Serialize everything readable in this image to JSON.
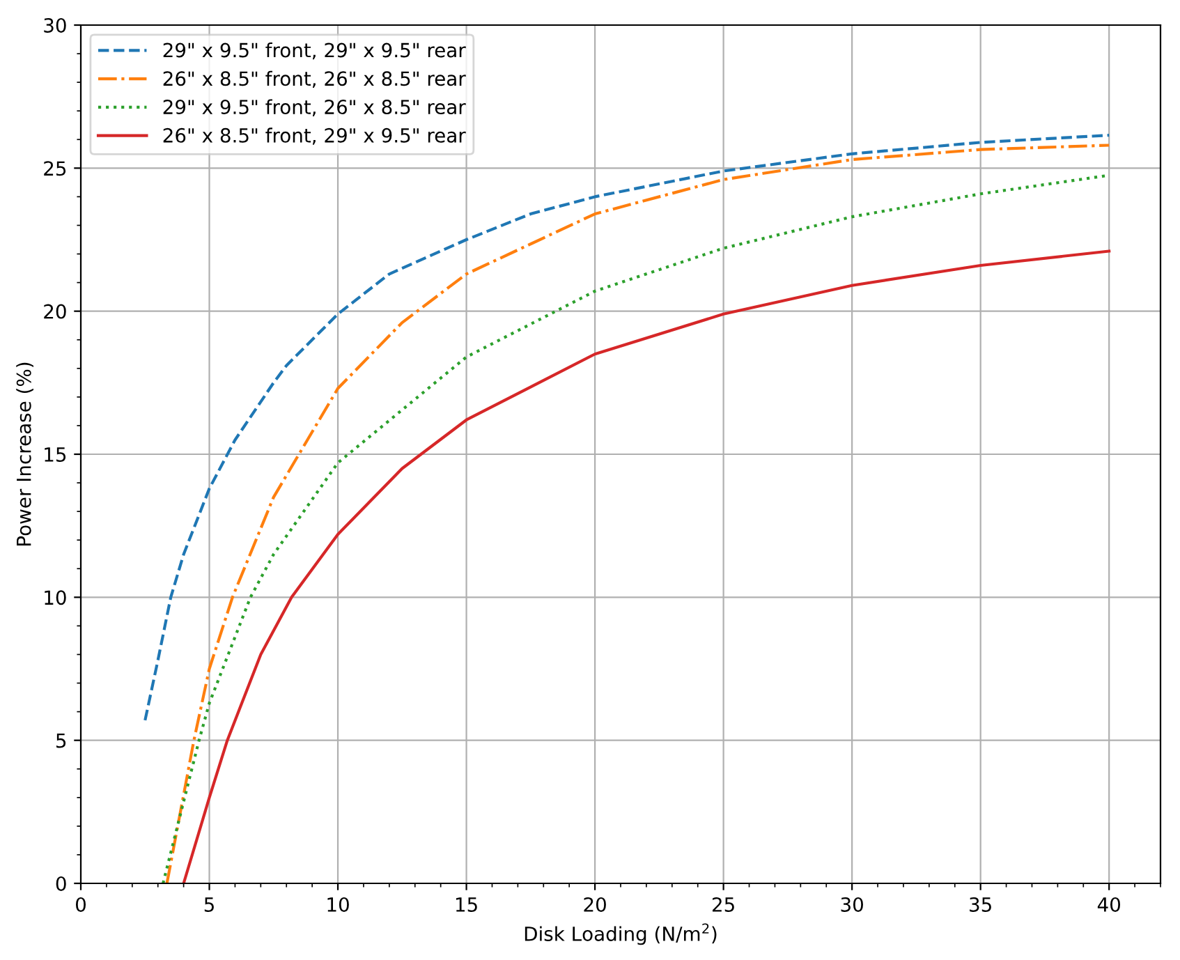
{
  "chart_data": {
    "type": "line",
    "xlabel": "Disk Loading (N/m$^{2}$)",
    "ylabel": "Power Increase (%)",
    "xlim": [
      0,
      42
    ],
    "xticks": [
      0,
      5,
      10,
      15,
      20,
      25,
      30,
      35,
      40
    ],
    "ylim": [
      0,
      30
    ],
    "yticks": [
      0,
      5,
      10,
      15,
      20,
      25,
      30
    ],
    "grid": true,
    "legend": "top left",
    "series": [
      {
        "name": "29\" x 9.5\" front, 29\" x 9.5\" rear",
        "color": "#1f77b4",
        "line_style": "dashed",
        "x": [
          2.5,
          3,
          3.5,
          4,
          5,
          6,
          7.5,
          8,
          10,
          12,
          15,
          17.5,
          20,
          25,
          30,
          35,
          40
        ],
        "values": [
          5.7,
          7.8,
          10,
          11.5,
          13.8,
          15.5,
          17.5,
          18.1,
          19.9,
          21.3,
          22.5,
          23.4,
          24.0,
          24.9,
          25.5,
          25.9,
          26.15
        ]
      },
      {
        "name": "26\" x 8.5\" front, 26\" x 8.5\" rear",
        "color": "#ff7f0e",
        "line_style": "dashdot",
        "x": [
          3.35,
          4.4,
          5,
          5.9,
          7.5,
          10,
          12.5,
          15,
          20,
          25,
          30,
          35,
          40
        ],
        "values": [
          0,
          5,
          7.5,
          10,
          13.5,
          17.3,
          19.6,
          21.3,
          23.4,
          24.6,
          25.3,
          25.65,
          25.8
        ]
      },
      {
        "name": "29\" x 9.5\" front, 26\" x 8.5\" rear",
        "color": "#2ca02c",
        "line_style": "dotted",
        "x": [
          3.2,
          4.6,
          5,
          6.6,
          7.5,
          10,
          15,
          20,
          25,
          30,
          35,
          40
        ],
        "values": [
          0,
          5,
          6.3,
          10,
          11.5,
          14.7,
          18.4,
          20.7,
          22.2,
          23.3,
          24.1,
          24.75
        ]
      },
      {
        "name": "26\" x 8.5\" front, 29\" x 9.5\" rear",
        "color": "#d62728",
        "line_style": "solid",
        "x": [
          4.0,
          5,
          5.7,
          7,
          8.2,
          10,
          12.5,
          15,
          20,
          25,
          30,
          35,
          40
        ],
        "values": [
          0,
          3.0,
          5,
          8.0,
          10,
          12.2,
          14.5,
          16.2,
          18.5,
          19.9,
          20.9,
          21.6,
          22.1
        ]
      }
    ]
  }
}
